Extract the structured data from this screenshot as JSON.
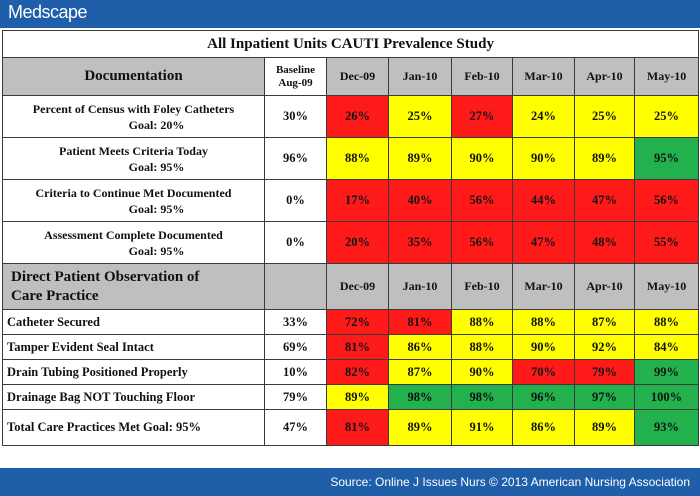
{
  "header": {
    "logo": "Medscape"
  },
  "footer": {
    "source": "Source: Online J Issues Nurs © 2013 American Nursing Association"
  },
  "table": {
    "title": "All Inpatient Units CAUTI Prevalence Study",
    "doc_section": {
      "label": "Documentation",
      "baseline_label_1": "Baseline",
      "baseline_label_2": "Aug-09",
      "months": [
        "Dec-09",
        "Jan-10",
        "Feb-10",
        "Mar-10",
        "Apr-10",
        "May-10"
      ],
      "rows": [
        {
          "label": "Percent of Census with Foley Catheters",
          "goal": "Goal: 20%",
          "baseline": "30%",
          "values": [
            "26%",
            "25%",
            "27%",
            "24%",
            "25%",
            "25%"
          ],
          "colors": [
            "red",
            "yellow",
            "red",
            "yellow",
            "yellow",
            "yellow"
          ]
        },
        {
          "label": "Patient Meets Criteria Today",
          "goal": "Goal: 95%",
          "baseline": "96%",
          "values": [
            "88%",
            "89%",
            "90%",
            "90%",
            "89%",
            "95%"
          ],
          "colors": [
            "yellow",
            "yellow",
            "yellow",
            "yellow",
            "yellow",
            "green"
          ]
        },
        {
          "label": "Criteria to Continue Met Documented",
          "goal": "Goal: 95%",
          "baseline": "0%",
          "values": [
            "17%",
            "40%",
            "56%",
            "44%",
            "47%",
            "56%"
          ],
          "colors": [
            "red",
            "red",
            "red",
            "red",
            "red",
            "red"
          ]
        },
        {
          "label": "Assessment Complete Documented",
          "goal": "Goal: 95%",
          "baseline": "0%",
          "values": [
            "20%",
            "35%",
            "56%",
            "47%",
            "48%",
            "55%"
          ],
          "colors": [
            "red",
            "red",
            "red",
            "red",
            "red",
            "red"
          ]
        }
      ]
    },
    "obs_section": {
      "label_1": "Direct Patient Observation of",
      "label_2": "Care Practice",
      "months": [
        "Dec-09",
        "Jan-10",
        "Feb-10",
        "Mar-10",
        "Apr-10",
        "May-10"
      ],
      "rows": [
        {
          "label": "Catheter Secured",
          "baseline": "33%",
          "values": [
            "72%",
            "81%",
            "88%",
            "88%",
            "87%",
            "88%"
          ],
          "colors": [
            "red",
            "red",
            "yellow",
            "yellow",
            "yellow",
            "yellow"
          ]
        },
        {
          "label": "Tamper Evident Seal Intact",
          "baseline": "69%",
          "values": [
            "81%",
            "86%",
            "88%",
            "90%",
            "92%",
            "84%"
          ],
          "colors": [
            "red",
            "yellow",
            "yellow",
            "yellow",
            "yellow",
            "yellow"
          ]
        },
        {
          "label": "Drain Tubing Positioned Properly",
          "baseline": "10%",
          "values": [
            "82%",
            "87%",
            "90%",
            "70%",
            "79%",
            "99%"
          ],
          "colors": [
            "red",
            "yellow",
            "yellow",
            "red",
            "red",
            "green"
          ]
        },
        {
          "label": "Drainage Bag NOT Touching Floor",
          "baseline": "79%",
          "values": [
            "89%",
            "98%",
            "98%",
            "96%",
            "97%",
            "100%"
          ],
          "colors": [
            "yellow",
            "green",
            "green",
            "green",
            "green",
            "green"
          ]
        },
        {
          "label": "Total Care Practices Met Goal: 95%",
          "baseline": "47%",
          "values": [
            "81%",
            "89%",
            "91%",
            "86%",
            "89%",
            "93%"
          ],
          "colors": [
            "red",
            "yellow",
            "yellow",
            "yellow",
            "yellow",
            "green"
          ]
        }
      ]
    }
  }
}
